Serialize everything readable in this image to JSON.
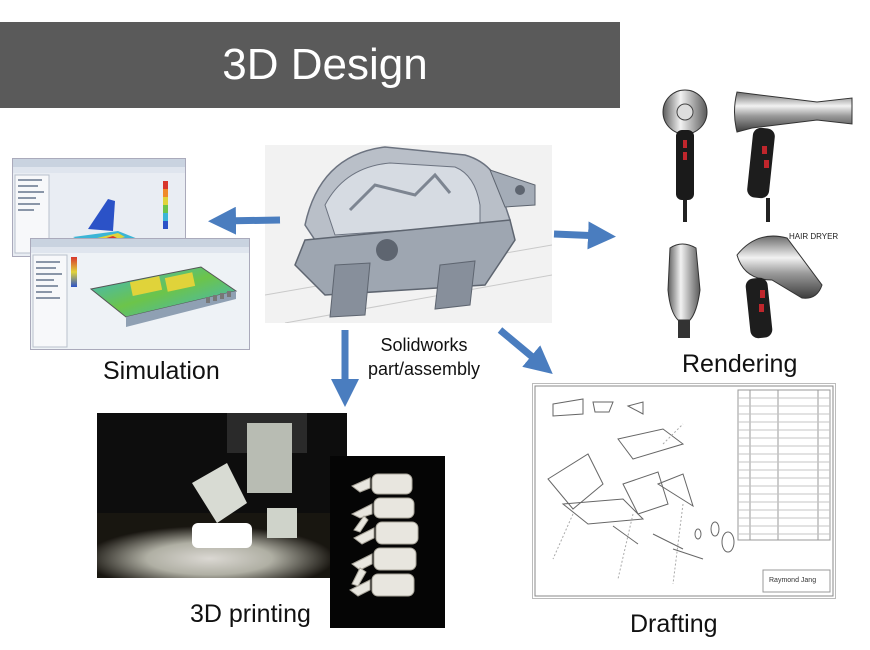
{
  "slide": {
    "title": "3D Design",
    "center_label": [
      "Solidworks",
      "part/assembly"
    ],
    "labels": {
      "simulation": "Simulation",
      "rendering": "Rendering",
      "printing": "3D printing",
      "drafting": "Drafting"
    },
    "render_caption": "HAIR DRYER",
    "drafting_signature": "Raymond Jang"
  },
  "colors": {
    "banner": "#5a5a5a",
    "arrow": "#4a7dbf",
    "title_text": "#ffffff"
  }
}
